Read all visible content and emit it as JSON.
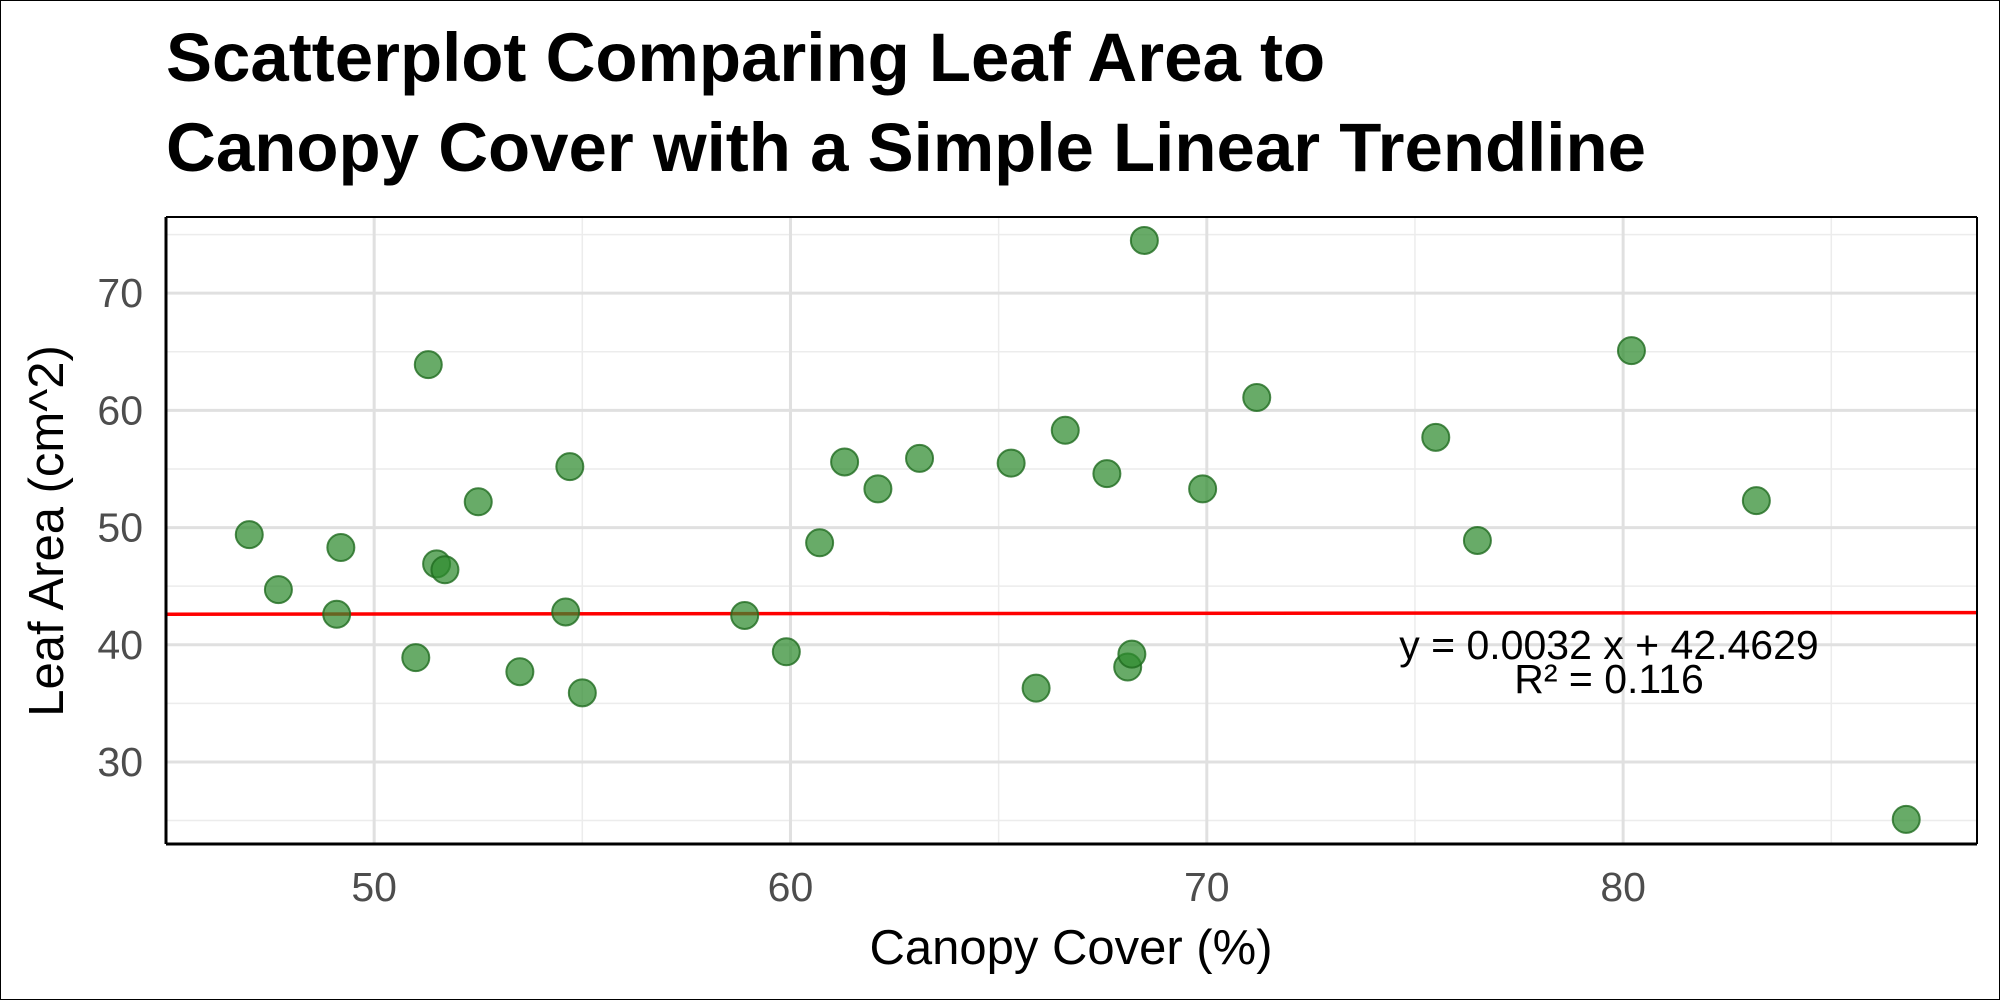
{
  "chart_data": {
    "type": "scatter",
    "title": "Scatterplot Comparing Leaf Area to Canopy Cover with a Simple Linear Trendline",
    "title_lines": [
      "Scatterplot Comparing Leaf Area to",
      "Canopy Cover with a Simple Linear Trendline"
    ],
    "xlabel": "Canopy Cover (%)",
    "ylabel": "Leaf Area (cm^2)",
    "xlim": [
      45,
      88.5
    ],
    "ylim": [
      23,
      76.5
    ],
    "x_ticks": [
      50,
      60,
      70,
      80
    ],
    "y_ticks": [
      30,
      40,
      50,
      60,
      70
    ],
    "x_minor_ticks": [
      55,
      65,
      75,
      85
    ],
    "y_minor_ticks": [
      25,
      35,
      45,
      55,
      65,
      75
    ],
    "grid": true,
    "legend": "none",
    "point_color": "#2e8b2e",
    "line_color": "#ff0000",
    "points": [
      {
        "x": 47.0,
        "y": 49.4
      },
      {
        "x": 47.7,
        "y": 44.7
      },
      {
        "x": 49.1,
        "y": 42.6
      },
      {
        "x": 49.2,
        "y": 48.3
      },
      {
        "x": 51.0,
        "y": 38.9
      },
      {
        "x": 51.3,
        "y": 63.9
      },
      {
        "x": 51.5,
        "y": 46.9
      },
      {
        "x": 51.7,
        "y": 46.4
      },
      {
        "x": 52.5,
        "y": 52.2
      },
      {
        "x": 53.5,
        "y": 37.7
      },
      {
        "x": 54.6,
        "y": 42.8
      },
      {
        "x": 54.7,
        "y": 55.2
      },
      {
        "x": 55.0,
        "y": 35.9
      },
      {
        "x": 58.9,
        "y": 42.5
      },
      {
        "x": 59.9,
        "y": 39.4
      },
      {
        "x": 60.7,
        "y": 48.7
      },
      {
        "x": 61.3,
        "y": 55.6
      },
      {
        "x": 62.1,
        "y": 53.3
      },
      {
        "x": 63.1,
        "y": 55.9
      },
      {
        "x": 65.3,
        "y": 55.5
      },
      {
        "x": 65.9,
        "y": 36.3
      },
      {
        "x": 66.6,
        "y": 58.3
      },
      {
        "x": 67.6,
        "y": 54.6
      },
      {
        "x": 68.1,
        "y": 38.1
      },
      {
        "x": 68.2,
        "y": 39.2
      },
      {
        "x": 68.5,
        "y": 74.5
      },
      {
        "x": 69.9,
        "y": 53.3
      },
      {
        "x": 71.2,
        "y": 61.1
      },
      {
        "x": 75.5,
        "y": 57.7
      },
      {
        "x": 76.5,
        "y": 48.9
      },
      {
        "x": 80.2,
        "y": 65.1
      },
      {
        "x": 83.2,
        "y": 52.3
      },
      {
        "x": 86.8,
        "y": 25.1
      }
    ],
    "trendline": {
      "slope": 0.0032,
      "intercept": 42.4629
    },
    "annotation": {
      "equation": "y = 0.0032 x + 42.4629",
      "r_squared": "R² = 0.116"
    }
  }
}
